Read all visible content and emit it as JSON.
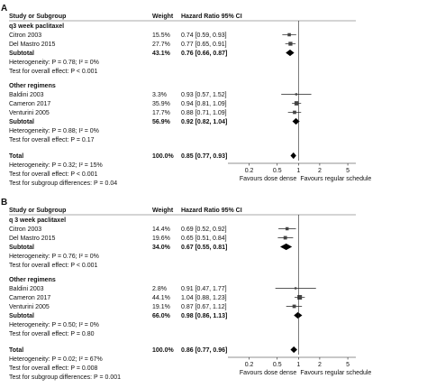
{
  "chart_data": [
    {
      "panel": "A",
      "type": "forest",
      "headers": {
        "study": "Study or Subgroup",
        "weight": "Weight",
        "hr": "Hazard Ratio 95% CI"
      },
      "rows": [
        {
          "kind": "group",
          "label": "q3 week paclitaxel"
        },
        {
          "kind": "study",
          "label": "Citron 2003",
          "weight": "15.5%",
          "ci": "0.74 [0.59, 0.93]",
          "hr": 0.74,
          "lo": 0.59,
          "hi": 0.93
        },
        {
          "kind": "study",
          "label": "Del Mastro 2015",
          "weight": "27.7%",
          "ci": "0.77 [0.65, 0.91]",
          "hr": 0.77,
          "lo": 0.65,
          "hi": 0.91
        },
        {
          "kind": "subtotal",
          "label": "Subtotal",
          "weight": "43.1%",
          "ci": "0.76 [0.66, 0.87]",
          "hr": 0.76,
          "lo": 0.66,
          "hi": 0.87
        },
        {
          "kind": "note",
          "label": "Heterogeneity: P = 0.78; I² = 0%"
        },
        {
          "kind": "note",
          "label": "Test for overall effect: P < 0.001"
        },
        {
          "kind": "spacer"
        },
        {
          "kind": "group",
          "label": "Other regimens"
        },
        {
          "kind": "study",
          "label": "Baldini 2003",
          "weight": "3.3%",
          "ci": "0.93 [0.57, 1.52]",
          "hr": 0.93,
          "lo": 0.57,
          "hi": 1.52
        },
        {
          "kind": "study",
          "label": "Cameron 2017",
          "weight": "35.9%",
          "ci": "0.94 [0.81, 1.09]",
          "hr": 0.94,
          "lo": 0.81,
          "hi": 1.09
        },
        {
          "kind": "study",
          "label": "Venturini 2005",
          "weight": "17.7%",
          "ci": "0.88 [0.71, 1.09]",
          "hr": 0.88,
          "lo": 0.71,
          "hi": 1.09
        },
        {
          "kind": "subtotal",
          "label": "Subtotal",
          "weight": "56.9%",
          "ci": "0.92 [0.82, 1.04]",
          "hr": 0.92,
          "lo": 0.82,
          "hi": 1.04
        },
        {
          "kind": "note",
          "label": "Heterogeneity: P = 0.88; I² = 0%"
        },
        {
          "kind": "note",
          "label": "Test for overall effect: P = 0.17"
        },
        {
          "kind": "spacer"
        },
        {
          "kind": "total",
          "label": "Total",
          "weight": "100.0%",
          "ci": "0.85 [0.77, 0.93]",
          "hr": 0.85,
          "lo": 0.77,
          "hi": 0.93
        },
        {
          "kind": "note",
          "label": "Heterogeneity: P = 0.32; I² = 15%"
        },
        {
          "kind": "note",
          "label": "Test for overall effect: P < 0.001"
        },
        {
          "kind": "note",
          "label": "Test for subgroup differences: P = 0.04"
        }
      ],
      "x_ticks": [
        "0.2",
        "0.5",
        "1",
        "2",
        "5"
      ],
      "x_tick_values": [
        0.2,
        0.5,
        1,
        2,
        5
      ],
      "x_scale": "log",
      "xlim": [
        0.1,
        6.5
      ],
      "favours_left": "Favours  dose dense",
      "favours_right": "Favours regular schedule"
    },
    {
      "panel": "B",
      "type": "forest",
      "headers": {
        "study": "Study or Subgroup",
        "weight": "Weight",
        "hr": "Hazard Ratio 95% CI"
      },
      "rows": [
        {
          "kind": "group",
          "label": "q 3 week paclitaxel"
        },
        {
          "kind": "study",
          "label": "Citron 2003",
          "weight": "14.4%",
          "ci": "0.69 [0.52, 0.92]",
          "hr": 0.69,
          "lo": 0.52,
          "hi": 0.92
        },
        {
          "kind": "study",
          "label": "Del Mastro 2015",
          "weight": "19.6%",
          "ci": "0.65 [0.51, 0.84]",
          "hr": 0.65,
          "lo": 0.51,
          "hi": 0.84
        },
        {
          "kind": "subtotal",
          "label": "Subtotal",
          "weight": "34.0%",
          "ci": "0.67 [0.55, 0.81]",
          "hr": 0.67,
          "lo": 0.55,
          "hi": 0.81
        },
        {
          "kind": "note",
          "label": "Heterogeneity: P = 0.76; I² = 0%"
        },
        {
          "kind": "note",
          "label": "Test for overall effect: P < 0.001"
        },
        {
          "kind": "spacer"
        },
        {
          "kind": "group",
          "label": "Other regimens"
        },
        {
          "kind": "study",
          "label": "Baldini 2003",
          "weight": "2.8%",
          "ci": "0.91 [0.47, 1.77]",
          "hr": 0.91,
          "lo": 0.47,
          "hi": 1.77
        },
        {
          "kind": "study",
          "label": "Cameron 2017",
          "weight": "44.1%",
          "ci": "1.04 [0.88, 1.23]",
          "hr": 1.04,
          "lo": 0.88,
          "hi": 1.23
        },
        {
          "kind": "study",
          "label": "Venturini 2005",
          "weight": "19.1%",
          "ci": "0.87 [0.67, 1.12]",
          "hr": 0.87,
          "lo": 0.67,
          "hi": 1.12
        },
        {
          "kind": "subtotal",
          "label": "Subtotal",
          "weight": "66.0%",
          "ci": "0.98 [0.86, 1.13]",
          "hr": 0.98,
          "lo": 0.86,
          "hi": 1.13
        },
        {
          "kind": "note",
          "label": "Heterogeneity: P = 0.50; I² = 0%"
        },
        {
          "kind": "note",
          "label": "Test for overall effect: P = 0.80"
        },
        {
          "kind": "spacer"
        },
        {
          "kind": "total",
          "label": "Total",
          "weight": "100.0%",
          "ci": "0.86 [0.77, 0.96]",
          "hr": 0.86,
          "lo": 0.77,
          "hi": 0.96
        },
        {
          "kind": "note",
          "label": "Heterogeneity: P = 0.02; I² = 67%"
        },
        {
          "kind": "note",
          "label": "Test for overall effect: P = 0.008"
        },
        {
          "kind": "note",
          "label": "Test for subgroup differences: P = 0.001"
        }
      ],
      "x_ticks": [
        "0.2",
        "0.5",
        "1",
        "2",
        "5"
      ],
      "x_tick_values": [
        0.2,
        0.5,
        1,
        2,
        5
      ],
      "x_scale": "log",
      "xlim": [
        0.1,
        6.5
      ],
      "favours_left": "Favours  dose dense",
      "favours_right": "Favours regular schedule"
    }
  ]
}
